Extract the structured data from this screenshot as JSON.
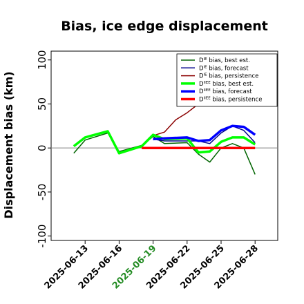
{
  "chart_data": {
    "type": "line",
    "title": "Bias, ice edge displacement",
    "xlabel": "",
    "ylabel": "Displacement bias (km)",
    "ylim": [
      -105,
      110
    ],
    "xlim": [
      "2025-06-10",
      "2025-06-30"
    ],
    "yticks": [
      -100,
      -50,
      0,
      50,
      100
    ],
    "xticks": [
      {
        "date": "2025-06-13",
        "label": "2025-06-13",
        "color": "#000000"
      },
      {
        "date": "2025-06-16",
        "label": "2025-06-16",
        "color": "#000000"
      },
      {
        "date": "2025-06-19",
        "label": "2025-06-19",
        "color": "#228B22"
      },
      {
        "date": "2025-06-22",
        "label": "2025-06-22",
        "color": "#000000"
      },
      {
        "date": "2025-06-25",
        "label": "2025-06-25",
        "color": "#000000"
      },
      {
        "date": "2025-06-28",
        "label": "2025-06-28",
        "color": "#000000"
      }
    ],
    "reference_line": 0,
    "legend_position": "top-right",
    "series": [
      {
        "name": "D^IE bias, best est.",
        "sup": "IE",
        "suffix": " bias, best est.",
        "color": "#006400",
        "width": 1.5,
        "x": [
          "2025-06-12",
          "2025-06-13",
          "2025-06-15",
          "2025-06-16",
          "2025-06-18",
          "2025-06-19",
          "2025-06-20",
          "2025-06-22",
          "2025-06-23",
          "2025-06-24",
          "2025-06-25",
          "2025-06-26",
          "2025-06-27",
          "2025-06-28"
        ],
        "y": [
          -6,
          9,
          17,
          -4,
          3,
          13,
          5,
          6,
          -7,
          -16,
          0,
          5,
          0,
          -30
        ]
      },
      {
        "name": "D^IE bias, forecast",
        "sup": "IE",
        "suffix": " bias, forecast",
        "color": "#00008B",
        "width": 1.5,
        "x": [
          "2025-06-19",
          "2025-06-20",
          "2025-06-22",
          "2025-06-23",
          "2025-06-24",
          "2025-06-25",
          "2025-06-26",
          "2025-06-27",
          "2025-06-28"
        ],
        "y": [
          10,
          8,
          8,
          8,
          5,
          17,
          25,
          20,
          6
        ]
      },
      {
        "name": "D^IE bias, persistence",
        "sup": "IE",
        "suffix": " bias, persistence",
        "color": "#8B0000",
        "width": 1.5,
        "x": [
          "2025-06-19",
          "2025-06-20",
          "2025-06-21",
          "2025-06-22",
          "2025-06-23"
        ],
        "y": [
          14,
          18,
          32,
          40,
          50
        ]
      },
      {
        "name": "D^IIEE bias, best est.",
        "sup": "IIEE",
        "suffix": " bias, best est.",
        "color": "#00FF00",
        "width": 3.5,
        "x": [
          "2025-06-12",
          "2025-06-13",
          "2025-06-15",
          "2025-06-16",
          "2025-06-18",
          "2025-06-19",
          "2025-06-20",
          "2025-06-22",
          "2025-06-23",
          "2025-06-24",
          "2025-06-25",
          "2025-06-26",
          "2025-06-27",
          "2025-06-28"
        ],
        "y": [
          2,
          12,
          19,
          -6,
          2,
          15,
          10,
          11,
          -5,
          -4,
          7,
          12,
          12,
          4
        ]
      },
      {
        "name": "D^IIEE bias, forecast",
        "sup": "IIEE",
        "suffix": " bias, forecast",
        "color": "#0000FF",
        "width": 3.5,
        "x": [
          "2025-06-19",
          "2025-06-20",
          "2025-06-22",
          "2025-06-23",
          "2025-06-24",
          "2025-06-25",
          "2025-06-26",
          "2025-06-27",
          "2025-06-28"
        ],
        "y": [
          10,
          11,
          12,
          8,
          9,
          20,
          25,
          24,
          15
        ]
      },
      {
        "name": "D^IIEE bias, persistence",
        "sup": "IIEE",
        "suffix": " bias, persistence",
        "color": "#FF0000",
        "width": 3.5,
        "x": [
          "2025-06-18",
          "2025-06-28"
        ],
        "y": [
          0,
          0
        ]
      }
    ]
  }
}
